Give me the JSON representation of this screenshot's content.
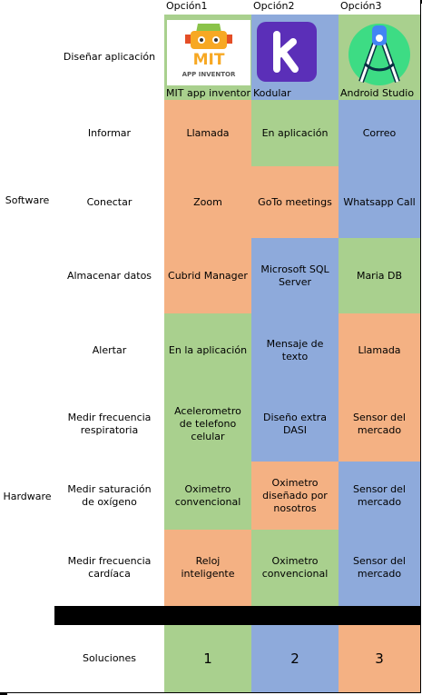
{
  "table": {
    "header": [
      "Opción1",
      "Opción2",
      "Opción3"
    ],
    "groups": [
      {
        "label": "Software",
        "rows": 5
      },
      {
        "label": "Hardware",
        "rows": 3
      }
    ],
    "rows": [
      {
        "label": "Diseñar aplicación",
        "cells": [
          "MIT app inventor",
          "Kodular",
          "Android Studio"
        ],
        "colors": [
          "#a9d08e",
          "#8eaadb",
          "#a9d08e"
        ]
      },
      {
        "label": "Informar",
        "cells": [
          "Llamada",
          "En aplicación",
          "Correo"
        ],
        "colors": [
          "#f4b183",
          "#a9d08e",
          "#8eaadb"
        ]
      },
      {
        "label": "Conectar",
        "cells": [
          "Zoom",
          "GoTo meetings",
          "Whatsapp Call"
        ],
        "colors": [
          "#f4b183",
          "#f4b183",
          "#8eaadb"
        ]
      },
      {
        "label": "Almacenar datos",
        "cells": [
          "Cubrid Manager",
          "Microsoft SQL Server",
          "Maria DB"
        ],
        "colors": [
          "#f4b183",
          "#8eaadb",
          "#a9d08e"
        ]
      },
      {
        "label": "Alertar",
        "cells": [
          "En la aplicación",
          "Mensaje de texto",
          "Llamada"
        ],
        "colors": [
          "#a9d08e",
          "#8eaadb",
          "#f4b183"
        ]
      },
      {
        "label": "Medir frecuencia respiratoria",
        "cells": [
          "Acelerometro de telefono celular",
          "Diseño extra DASI",
          "Sensor del mercado"
        ],
        "colors": [
          "#a9d08e",
          "#8eaadb",
          "#f4b183"
        ]
      },
      {
        "label": "Medir saturación de oxígeno",
        "cells": [
          "Oximetro convencional",
          "Oximetro diseñado por nosotros",
          "Sensor del mercado"
        ],
        "colors": [
          "#a9d08e",
          "#f4b183",
          "#8eaadb"
        ]
      },
      {
        "label": "Medir frecuencia cardíaca",
        "cells": [
          "Reloj inteligente",
          "Oximetro convencional",
          "Sensor del mercado"
        ],
        "colors": [
          "#f4b183",
          "#a9d08e",
          "#8eaadb"
        ]
      }
    ],
    "solutions": {
      "label": "Soluciones",
      "values": [
        1,
        2,
        3
      ],
      "colors": [
        "#a9d08e",
        "#8eaadb",
        "#f4b183"
      ]
    },
    "logos": {
      "mit": [
        "MIT",
        "APP INVENTOR"
      ]
    }
  }
}
